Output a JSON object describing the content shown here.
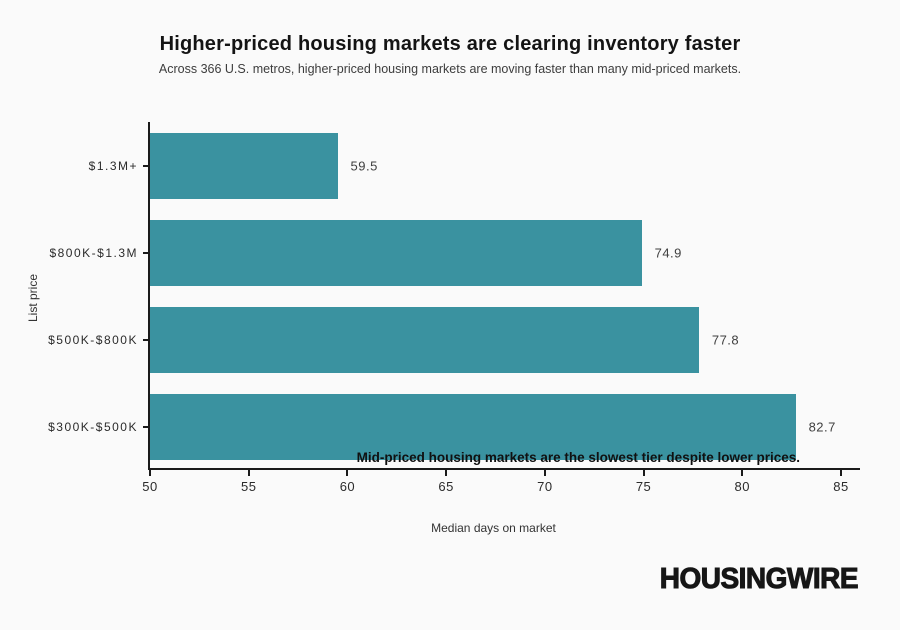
{
  "header": {
    "title": "Higher-priced housing markets are clearing inventory faster",
    "subtitle": "Across 366 U.S. metros, higher-priced housing markets are moving faster than many mid-priced markets."
  },
  "chart_data": {
    "type": "bar",
    "orientation": "horizontal",
    "categories": [
      "$1.3M+",
      "$800K-$1.3M",
      "$500K-$800K",
      "$300K-$500K"
    ],
    "values": [
      59.5,
      74.9,
      77.8,
      82.7
    ],
    "value_labels": [
      "59.5",
      "74.9",
      "77.8",
      "82.7"
    ],
    "xlabel": "Median days on market",
    "ylabel": "List price",
    "xlim": [
      50,
      85
    ],
    "xticks": [
      50,
      55,
      60,
      65,
      70,
      75,
      80,
      85
    ],
    "bar_color": "#3a92a0",
    "grid": false,
    "annotation": "Mid-priced housing markets are the slowest tier despite lower prices."
  },
  "colors": {
    "background": "#fafafa",
    "bar": "#3a92a0",
    "axis": "#1a1a1a",
    "title_text": "#141414",
    "body_text": "#3d3d3d"
  },
  "footer": {
    "logo": "HOUSINGWIRE"
  }
}
